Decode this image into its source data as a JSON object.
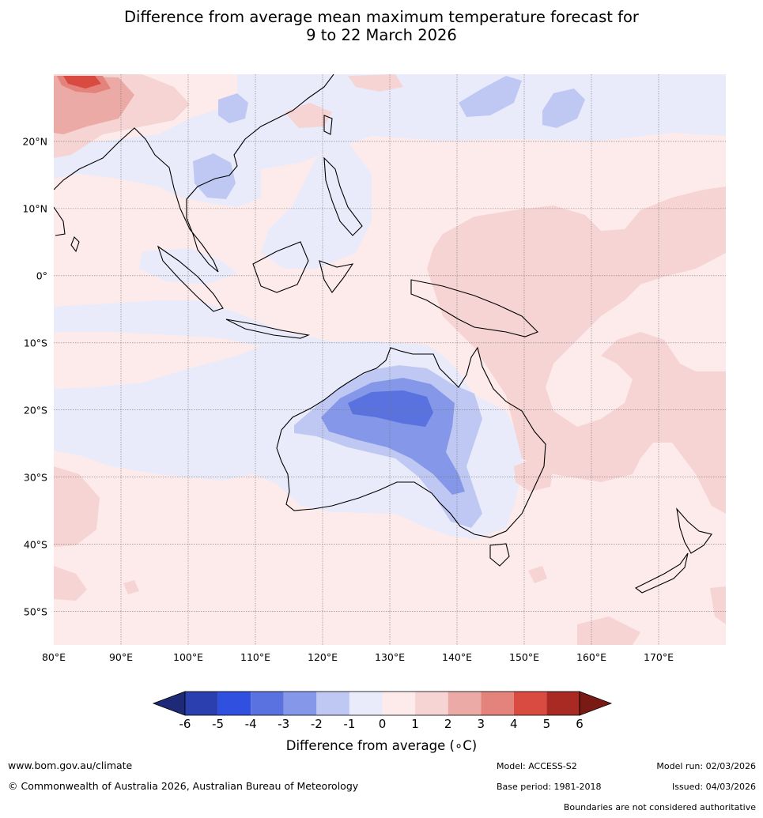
{
  "title": {
    "line1": "Difference from average mean maximum temperature forecast for",
    "line2": "9 to 22 March 2026"
  },
  "map": {
    "lon_range": [
      80,
      180
    ],
    "lat_range": [
      -55,
      30
    ],
    "lat_labels": [
      "20°N",
      "10°N",
      "0°",
      "10°S",
      "20°S",
      "30°S",
      "40°S",
      "50°S"
    ],
    "lon_labels": [
      "80°E",
      "90°E",
      "100°E",
      "110°E",
      "120°E",
      "130°E",
      "140°E",
      "150°E",
      "160°E",
      "170°E"
    ],
    "colors": {
      "background": "#fcebea",
      "ocean_base": "#fcebea",
      "grid": "#888888",
      "coast": "#000000"
    }
  },
  "colorbar": {
    "title": "Difference from average (∘C)",
    "ticks": [
      "-6",
      "-5",
      "-4",
      "-3",
      "-2",
      "-1",
      "0",
      "1",
      "2",
      "3",
      "4",
      "5",
      "6"
    ],
    "colors": [
      "#1e2a78",
      "#2b3fae",
      "#3051e0",
      "#5a72e0",
      "#8597e8",
      "#bfc8f2",
      "#e9ebfb",
      "#fcebea",
      "#f5d4d3",
      "#ecaaa6",
      "#e4837b",
      "#d94b40",
      "#a82a22",
      "#7a1a14"
    ]
  },
  "footer": {
    "website": "www.bom.gov.au/climate",
    "copyright": "© Commonwealth of Australia 2026, Australian Bureau of Meteorology",
    "model": "Model: ACCESS-S2",
    "base_period": "Base period: 1981-2018",
    "model_run": "Model run: 02/03/2026",
    "issued": "Issued: 04/03/2026",
    "boundaries": "Boundaries are not considered authoritative"
  }
}
